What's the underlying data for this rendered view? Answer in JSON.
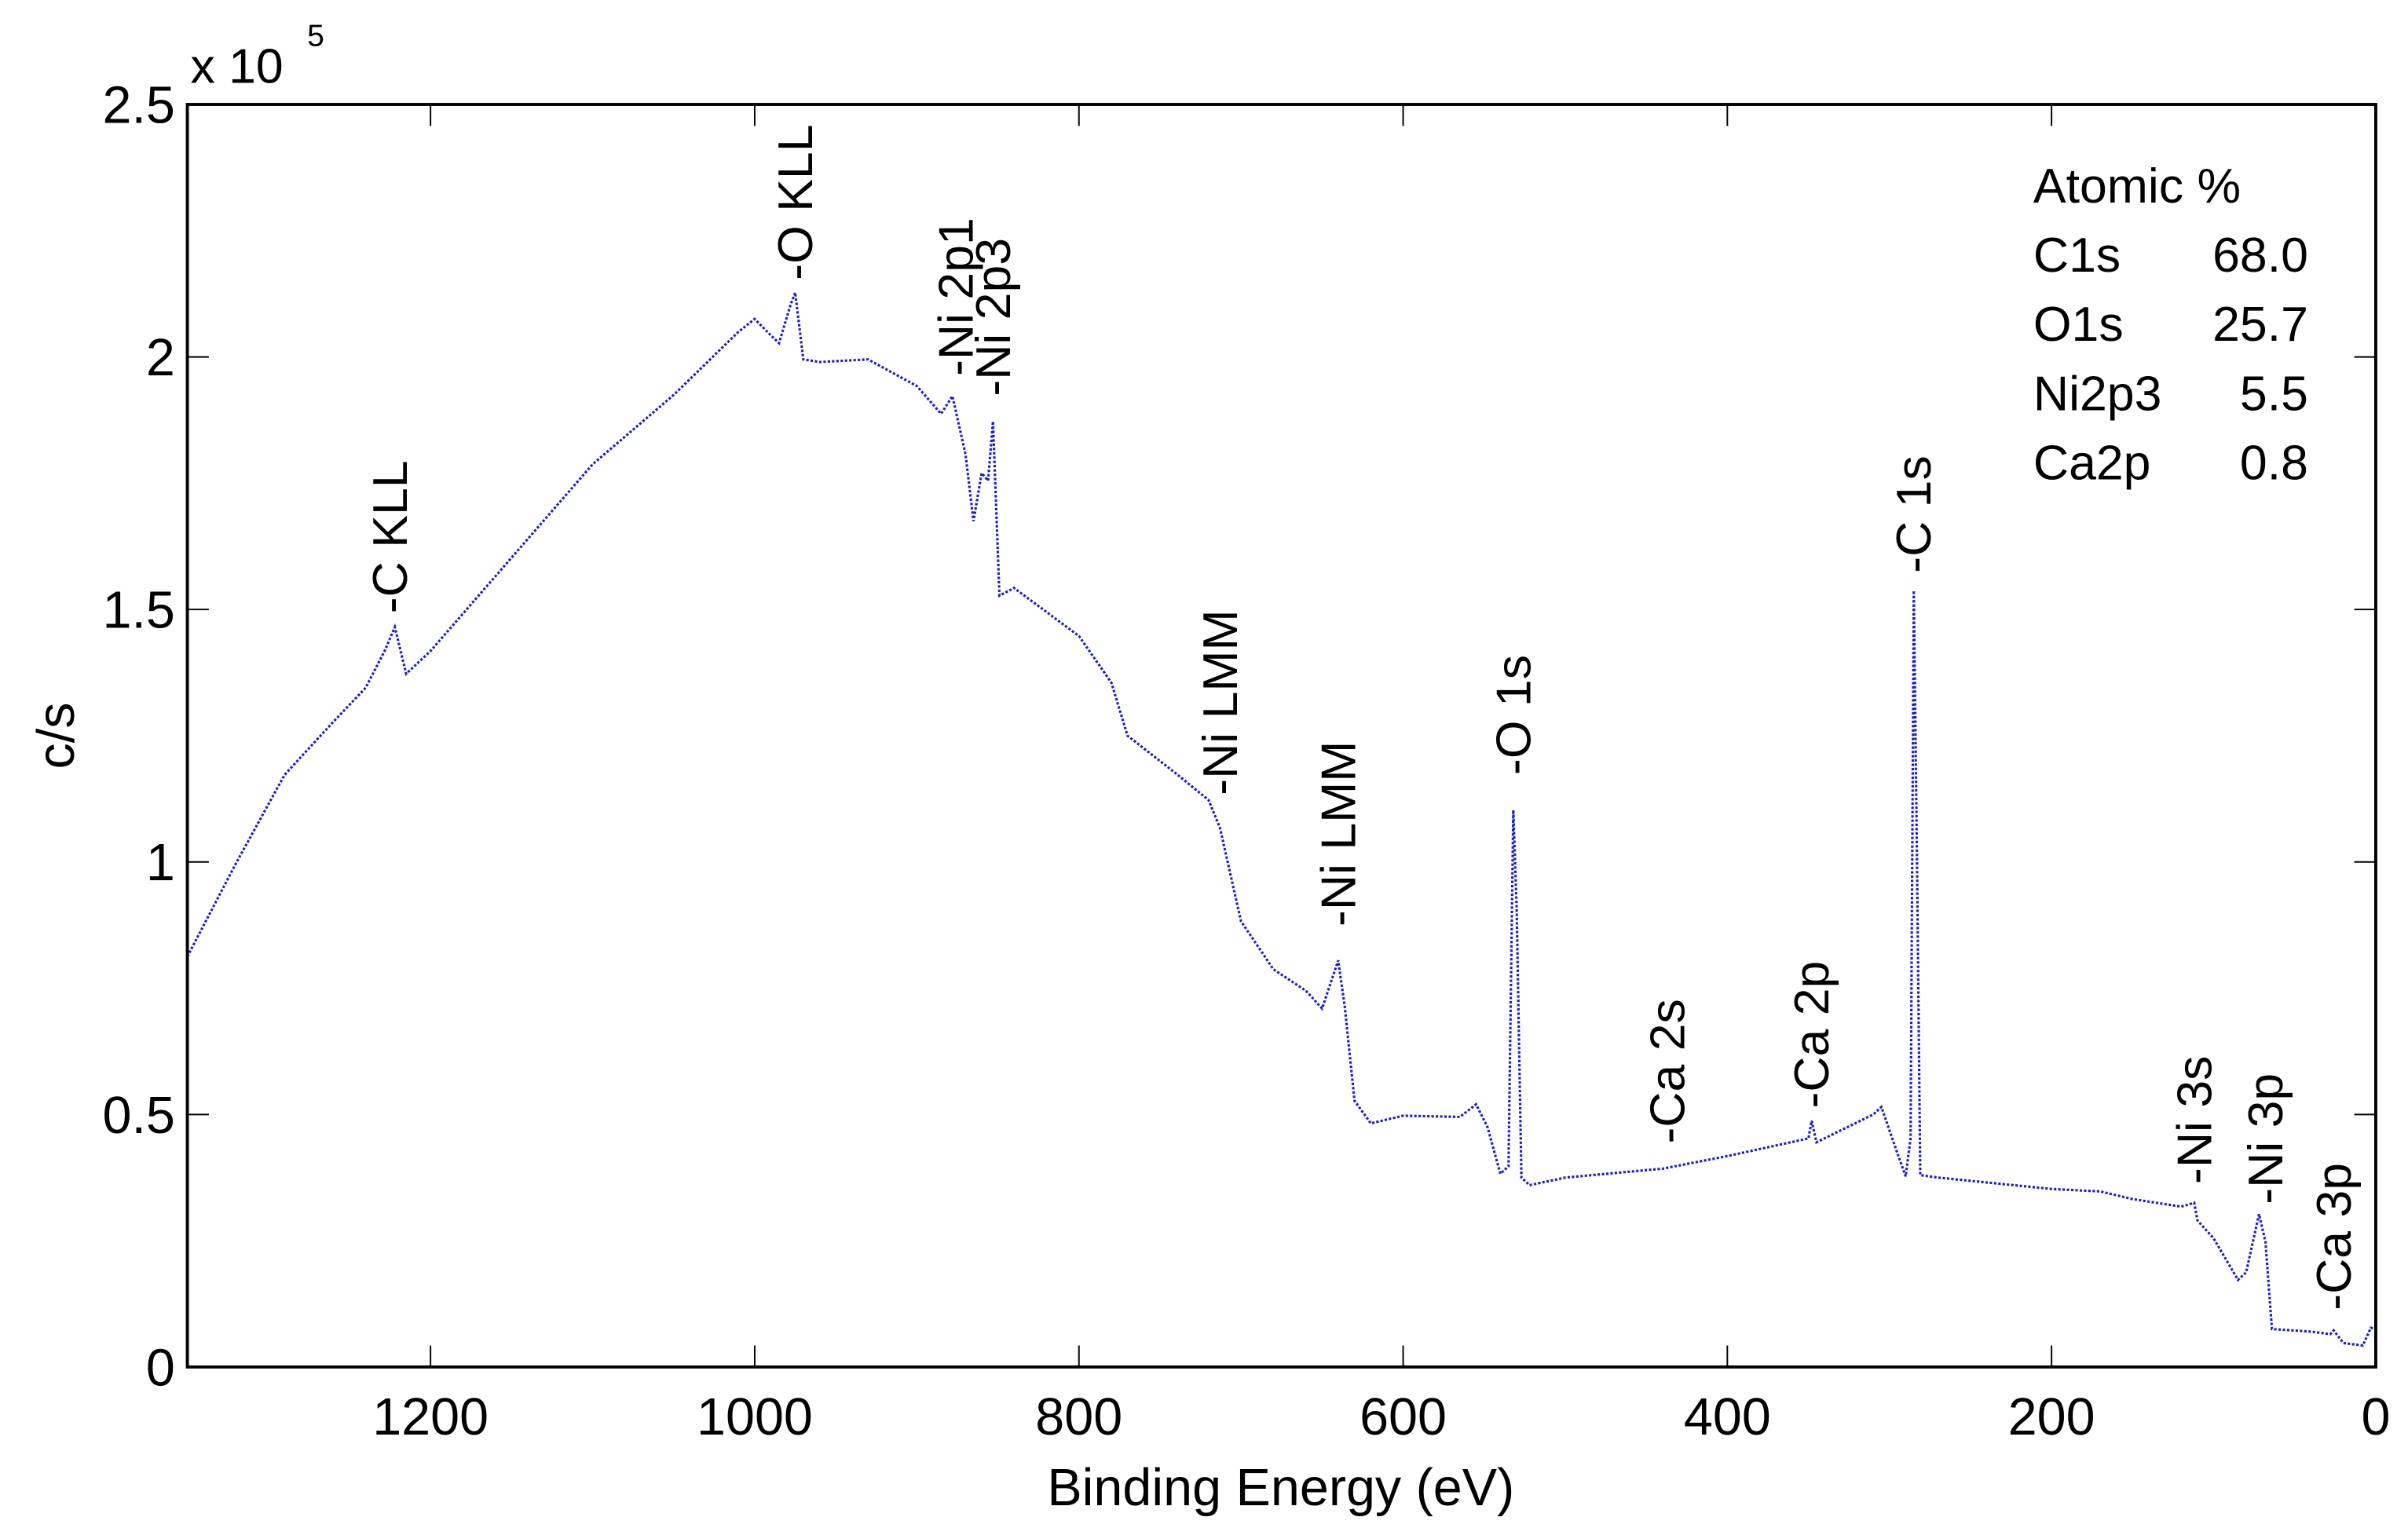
{
  "chart_data": {
    "type": "line",
    "title": "",
    "xlabel": "Binding Energy (eV)",
    "ylabel": "c/s",
    "y_multiplier_label": "x 10",
    "y_multiplier_exponent": "5",
    "xlim": [
      1350,
      0
    ],
    "x_reversed": true,
    "ylim": [
      0,
      2.5
    ],
    "grid": false,
    "x_ticks": [
      1200,
      1000,
      800,
      600,
      400,
      200,
      0
    ],
    "x_tick_labels": [
      "1200",
      "1000",
      "800",
      "600",
      "400",
      "200",
      "0"
    ],
    "y_ticks": [
      0,
      0.5,
      1,
      1.5,
      2,
      2.5
    ],
    "y_tick_labels": [
      "0",
      "0.5",
      "1",
      "1.5",
      "2",
      "2.5"
    ],
    "series": [
      {
        "color": "#1c1ccc",
        "style": "dotted",
        "x": [
          1350,
          1320,
          1290,
          1260,
          1240,
          1228,
          1222,
          1215,
          1200,
          1150,
          1100,
          1050,
          1010,
          1000,
          990,
          985,
          978,
          975,
          970,
          960,
          930,
          900,
          885,
          878,
          870,
          865,
          860,
          856,
          853,
          849,
          840,
          800,
          780,
          770,
          740,
          720,
          713,
          700,
          680,
          660,
          650,
          640,
          636,
          630,
          620,
          600,
          565,
          555,
          548,
          540,
          535,
          532,
          530,
          527,
          522,
          500,
          440,
          400,
          350,
          348,
          345,
          310,
          305,
          295,
          290,
          287,
          285,
          283,
          281,
          270,
          200,
          170,
          150,
          120,
          112,
          110,
          100,
          85,
          80,
          72,
          68,
          64,
          40,
          28,
          26,
          20,
          8,
          3,
          0
        ],
        "y": [
          0.82,
          1.0,
          1.17,
          1.27,
          1.35,
          1.42,
          1.46,
          1.38,
          1.42,
          1.6,
          1.78,
          1.93,
          2.05,
          2.07,
          2.05,
          2.03,
          2.1,
          2.12,
          2.0,
          1.99,
          1.99,
          1.95,
          1.89,
          1.92,
          1.8,
          1.68,
          1.77,
          1.75,
          1.88,
          1.53,
          1.54,
          1.44,
          1.36,
          1.25,
          1.17,
          1.13,
          1.07,
          0.88,
          0.78,
          0.75,
          0.71,
          0.8,
          0.72,
          0.53,
          0.48,
          0.49,
          0.5,
          0.52,
          0.47,
          0.39,
          0.4,
          1.1,
          0.9,
          0.38,
          0.36,
          0.37,
          0.4,
          0.42,
          0.45,
          0.48,
          0.45,
          0.5,
          0.51,
          0.43,
          0.38,
          0.45,
          1.53,
          1.0,
          0.38,
          0.37,
          0.36,
          0.35,
          0.33,
          0.31,
          0.33,
          0.29,
          0.25,
          0.18,
          0.19,
          0.3,
          0.24,
          0.08,
          0.07,
          0.06,
          0.08,
          0.05,
          0.04,
          0.07,
          0.08
        ]
      }
    ],
    "annotations": [
      {
        "label": "-C KLL",
        "x": 1225,
        "y": 1.48
      },
      {
        "label": "-O KLL",
        "x": 975,
        "y": 2.14
      },
      {
        "label": "-Ni 2p1",
        "x": 876,
        "y": 1.95
      },
      {
        "label": "-Ni 2p3",
        "x": 853,
        "y": 1.91
      },
      {
        "label": "-Ni LMM",
        "x": 713,
        "y": 1.12
      },
      {
        "label": "-Ni LMM",
        "x": 640,
        "y": 0.86
      },
      {
        "label": "-O 1s",
        "x": 532,
        "y": 1.16
      },
      {
        "label": "-Ca 2s",
        "x": 437,
        "y": 0.43
      },
      {
        "label": "-Ca 2p",
        "x": 348,
        "y": 0.5
      },
      {
        "label": "-C 1s",
        "x": 285,
        "y": 1.56
      },
      {
        "label": "-Ni 3s",
        "x": 112,
        "y": 0.35
      },
      {
        "label": "-Ni 3p",
        "x": 68,
        "y": 0.31
      },
      {
        "label": "-Ca 3p",
        "x": 26,
        "y": 0.1
      }
    ],
    "legend_table": {
      "title": "Atomic %",
      "placement": "top-right",
      "rows": [
        {
          "name": "C1s",
          "value": "68.0"
        },
        {
          "name": "O1s",
          "value": "25.7"
        },
        {
          "name": "Ni2p3",
          "value": "5.5"
        },
        {
          "name": "Ca2p",
          "value": "0.8"
        }
      ]
    }
  }
}
